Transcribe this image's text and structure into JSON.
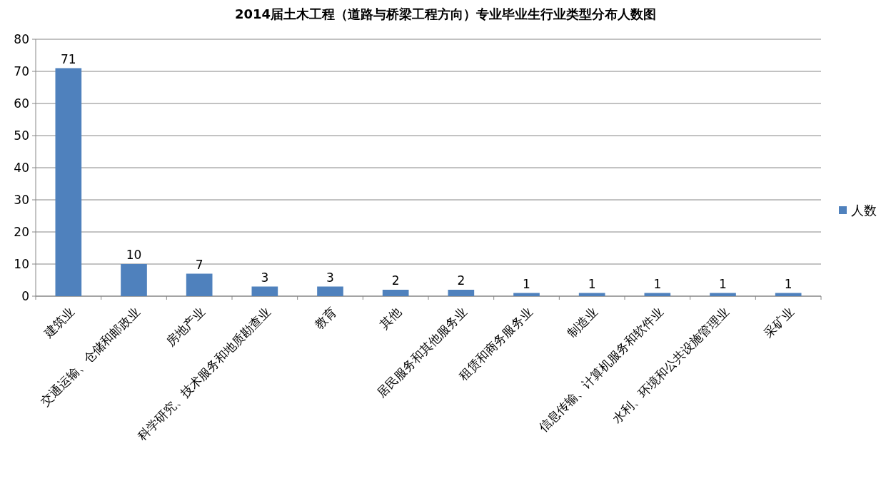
{
  "chart_data": {
    "type": "bar",
    "title": "2014届土木工程（道路与桥梁工程方向）专业毕业生行业类型分布人数图",
    "categories": [
      "建筑业",
      "交通运输、仓储和邮政业",
      "房地产业",
      "科学研究、技术服务和地质勘查业",
      "教育",
      "其他",
      "居民服务和其他服务业",
      "租赁和商务服务业",
      "制造业",
      "信息传输、计算机服务和软件业",
      "水利、环境和公共设施管理业",
      "采矿业"
    ],
    "series": [
      {
        "name": "人数",
        "color": "#4f81bd",
        "values": [
          71,
          10,
          7,
          3,
          3,
          2,
          2,
          1,
          1,
          1,
          1,
          1
        ]
      }
    ],
    "ylim": [
      0,
      80
    ],
    "yticks": [
      0,
      10,
      20,
      30,
      40,
      50,
      60,
      70,
      80
    ],
    "grid": "y",
    "legend": "right",
    "data_labels": true
  }
}
